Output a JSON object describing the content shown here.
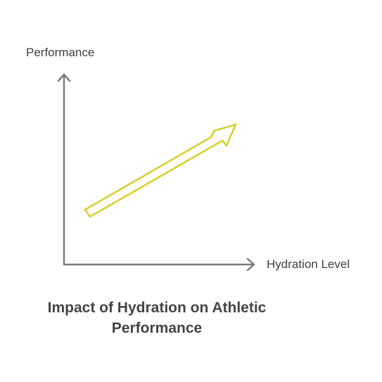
{
  "y_axis_label": "Performance",
  "x_axis_label": "Hydration Level",
  "title": {
    "line1": "Impact of Hydration on Athletic",
    "line2": "Performance"
  },
  "colors": {
    "axis": "#7a7a7a",
    "trend_arrow": "#d9cf2a",
    "text": "#404040",
    "background": "#ffffff"
  },
  "trend": {
    "direction": "increasing",
    "icon": "up-right-arrow"
  }
}
